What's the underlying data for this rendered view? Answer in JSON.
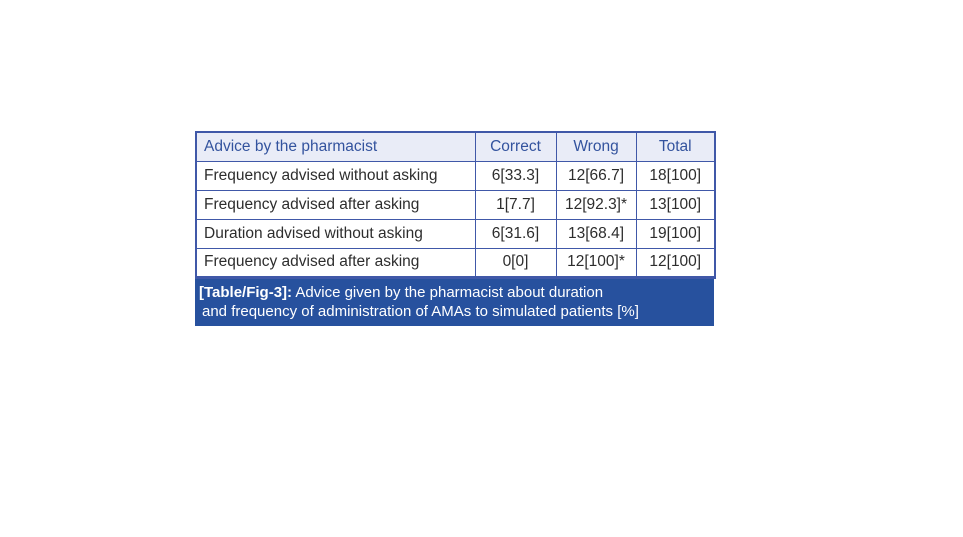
{
  "chart_data": {
    "type": "table",
    "title": "[Table/Fig-3]: Advice given by the pharmacist about duration and frequency of administration of AMAs to simulated patients [%]",
    "columns": [
      "Advice by the pharmacist",
      "Correct",
      "Wrong",
      "Total"
    ],
    "rows": [
      [
        "Frequency advised without asking",
        "6[33.3]",
        "12[66.7]",
        "18[100]"
      ],
      [
        "Frequency advised after asking",
        "1[7.7]",
        "12[92.3]*",
        "13[100]"
      ],
      [
        "Duration advised without asking",
        "6[31.6]",
        "13[68.4]",
        "19[100]"
      ],
      [
        "Frequency advised after asking",
        "0[0]",
        "12[100]*",
        "12[100]"
      ]
    ],
    "legend_position": "none",
    "grid": "full-borders"
  },
  "caption": {
    "label": "[Table/Fig-3]:",
    "line1": "Advice given by the pharmacist about duration",
    "line2": "and frequency of administration of AMAs to simulated patients [%]"
  },
  "colors": {
    "border": "#4058a8",
    "header_background": "#e9ecf7",
    "header_text": "#33539e",
    "body_text": "#2d2d2d",
    "caption_background": "#27519e",
    "caption_text": "#ffffff",
    "page_background": "#ffffff"
  }
}
